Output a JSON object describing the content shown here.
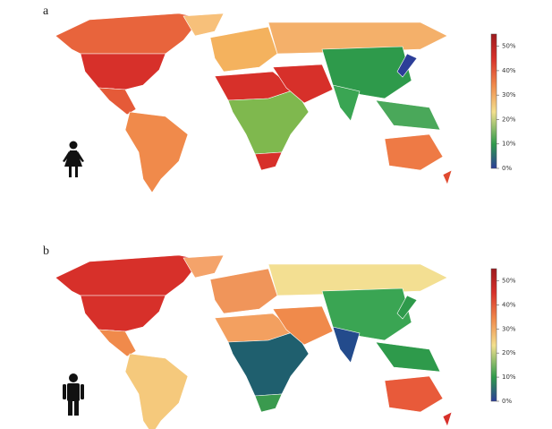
{
  "panels": [
    {
      "label": "a",
      "colorbar": {
        "lim": [
          0,
          55
        ],
        "ticks": [
          {
            "value": 0,
            "label": "0%"
          },
          {
            "value": 10,
            "label": "10%"
          },
          {
            "value": 20,
            "label": "20%"
          },
          {
            "value": 30,
            "label": "30%"
          },
          {
            "value": 40,
            "label": "40%"
          },
          {
            "value": 50,
            "label": "50%"
          }
        ]
      }
    },
    {
      "label": "b",
      "colorbar": {
        "lim": [
          0,
          55
        ],
        "ticks": [
          {
            "value": 0,
            "label": "0%"
          },
          {
            "value": 10,
            "label": "10%"
          },
          {
            "value": 20,
            "label": "20%"
          },
          {
            "value": 30,
            "label": "30%"
          },
          {
            "value": 40,
            "label": "40%"
          },
          {
            "value": 50,
            "label": "50%"
          }
        ]
      }
    }
  ]
}
